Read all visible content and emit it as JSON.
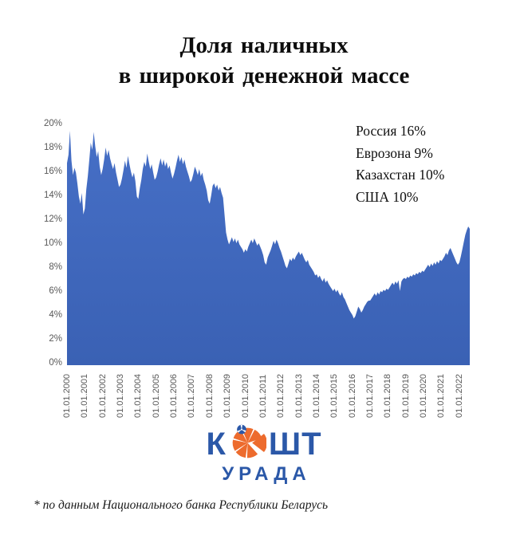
{
  "title": {
    "line1": "Доля наличных",
    "line2": "в широкой денежной массе"
  },
  "annotation": {
    "lines": [
      "Россия 16%",
      "Еврозона 9%",
      "Казахстан 10%",
      "США 10%"
    ]
  },
  "footnote": "* по данным Национального банка Республики Беларусь",
  "logo": {
    "text_left": "К",
    "text_right": "ШТ",
    "subtext": "УРАДА",
    "icon": "orange-slice-icon",
    "blue": "#2B58A8",
    "orange": "#ED6B2D"
  },
  "colors": {
    "area_fill_top": "#466FC6",
    "area_fill_bottom": "#3A61B4",
    "axis_label": "#595959"
  },
  "chart_data": {
    "type": "area",
    "title": "Доля наличных в широкой денежной массе",
    "xlabel": "",
    "ylabel": "",
    "unit": "percent",
    "ylim": [
      0,
      20
    ],
    "grid": false,
    "legend": false,
    "y_tick_labels": [
      "20%",
      "18%",
      "16%",
      "14%",
      "12%",
      "10%",
      "8%",
      "6%",
      "4%",
      "2%",
      "0%"
    ],
    "x_tick_labels": [
      "01.01.2000",
      "01.01.2001",
      "01.01.2002",
      "01.01.2003",
      "01.01.2004",
      "01.01.2005",
      "01.01.2006",
      "01.01.2007",
      "01.01.2008",
      "01.01.2009",
      "01.01.2010",
      "01.01.2011",
      "01.01.2012",
      "01.01.2013",
      "01.01.2014",
      "01.01.2015",
      "01.01.2016",
      "01.01.2017",
      "01.01.2018",
      "01.01.2019",
      "01.01.2020",
      "01.01.2021",
      "01.01.2022"
    ],
    "frequency": "monthly",
    "start": "01.2000",
    "end": "08.2022",
    "values": [
      16.7,
      17.4,
      19.4,
      16.9,
      15.7,
      16.3,
      15.9,
      15.0,
      13.9,
      13.3,
      14.2,
      12.4,
      12.9,
      14.5,
      15.6,
      17.0,
      18.4,
      17.8,
      19.3,
      18.1,
      17.2,
      17.7,
      16.4,
      15.7,
      16.2,
      17.0,
      18.0,
      17.3,
      17.8,
      17.1,
      16.6,
      16.2,
      16.7,
      15.9,
      15.3,
      14.7,
      14.9,
      15.4,
      16.1,
      16.9,
      16.3,
      17.3,
      16.6,
      16.0,
      15.5,
      15.9,
      15.2,
      13.9,
      13.7,
      14.6,
      15.3,
      16.2,
      16.8,
      16.4,
      17.5,
      16.8,
      16.2,
      16.6,
      15.9,
      15.3,
      15.5,
      16.0,
      16.6,
      17.1,
      16.5,
      17.0,
      16.4,
      16.8,
      16.2,
      16.5,
      15.9,
      15.4,
      15.8,
      16.3,
      16.9,
      17.4,
      16.8,
      17.2,
      16.6,
      17.0,
      16.4,
      16.0,
      15.6,
      15.1,
      15.3,
      15.8,
      16.4,
      16.1,
      15.7,
      16.2,
      15.6,
      15.9,
      15.3,
      14.9,
      14.4,
      13.6,
      13.3,
      14.0,
      14.8,
      15.0,
      14.6,
      14.9,
      14.4,
      14.7,
      14.2,
      13.8,
      12.4,
      10.9,
      10.3,
      9.9,
      10.2,
      10.5,
      10.1,
      10.4,
      10.0,
      10.3,
      9.9,
      9.7,
      9.5,
      9.2,
      9.5,
      9.3,
      9.7,
      10.0,
      10.3,
      10.0,
      10.4,
      10.1,
      9.8,
      10.0,
      9.7,
      9.4,
      9.0,
      8.4,
      8.2,
      8.8,
      9.1,
      9.4,
      9.8,
      10.2,
      9.9,
      10.3,
      10.0,
      9.6,
      9.3,
      8.9,
      8.5,
      8.1,
      7.9,
      8.3,
      8.7,
      8.5,
      8.8,
      8.6,
      8.9,
      9.1,
      9.3,
      9.0,
      9.2,
      8.9,
      8.6,
      8.4,
      8.6,
      8.2,
      8.0,
      7.8,
      7.6,
      7.3,
      7.4,
      7.1,
      7.3,
      7.0,
      6.8,
      7.1,
      6.7,
      6.9,
      6.6,
      6.4,
      6.2,
      6.0,
      6.2,
      5.9,
      6.1,
      5.8,
      5.6,
      5.9,
      5.5,
      5.3,
      5.0,
      4.7,
      4.4,
      4.2,
      4.0,
      3.7,
      3.9,
      4.3,
      4.7,
      4.5,
      4.2,
      4.4,
      4.7,
      4.9,
      5.1,
      5.2,
      5.2,
      5.4,
      5.6,
      5.8,
      5.6,
      5.9,
      5.7,
      6.0,
      5.9,
      6.1,
      6.0,
      6.2,
      6.1,
      6.3,
      6.5,
      6.7,
      6.5,
      6.8,
      6.6,
      6.9,
      6.0,
      6.8,
      7.0,
      7.1,
      7.0,
      7.2,
      7.1,
      7.3,
      7.2,
      7.4,
      7.3,
      7.5,
      7.4,
      7.6,
      7.5,
      7.7,
      7.6,
      7.8,
      8.0,
      8.2,
      8.0,
      8.3,
      8.1,
      8.4,
      8.2,
      8.5,
      8.3,
      8.6,
      8.5,
      8.7,
      8.9,
      9.2,
      9.0,
      9.4,
      9.6,
      9.3,
      9.0,
      8.7,
      8.4,
      8.2,
      8.4,
      8.9,
      9.5,
      10.1,
      10.7,
      11.1,
      11.4,
      11.2
    ]
  }
}
